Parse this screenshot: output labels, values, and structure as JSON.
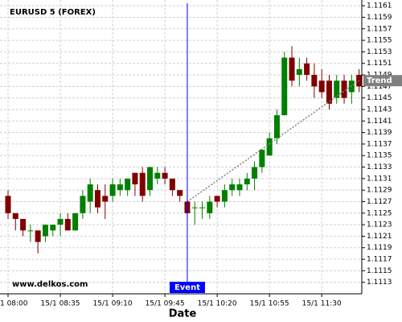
{
  "chart_data": {
    "type": "candlestick",
    "title": "EURUSD 5 (FOREX)",
    "watermark": "www.delkos.com",
    "x_label": "Date",
    "categories": [
      "15/1 08:00",
      null,
      null,
      null,
      null,
      null,
      null,
      "15/1 08:35",
      null,
      null,
      null,
      null,
      null,
      null,
      "15/1 09:10",
      null,
      null,
      null,
      null,
      null,
      null,
      "15/1 09:45",
      null,
      null,
      null,
      null,
      null,
      null,
      "15/1 10:20",
      null,
      null,
      null,
      null,
      null,
      null,
      "15/1 10:55",
      null,
      null,
      null,
      null,
      null,
      null,
      "15/1 11:30",
      null,
      null,
      null,
      null,
      null
    ],
    "open": [
      1.1128,
      1.1125,
      1.1124,
      1.1122,
      1.1122,
      1.1121,
      1.1122,
      1.1123,
      1.1124,
      1.1122,
      1.1125,
      1.1127,
      1.1129,
      1.1128,
      1.1128,
      1.1129,
      1.1129,
      1.1132,
      1.1132,
      1.1129,
      1.1131,
      1.1132,
      1.1131,
      1.1129,
      1.1127,
      1.1126,
      1.1126,
      1.1125,
      1.1128,
      1.1127,
      1.1129,
      1.1129,
      1.113,
      1.1131,
      1.1133,
      1.1135,
      1.1138,
      1.1142,
      1.1152,
      1.1149,
      1.1151,
      1.1149,
      1.1148,
      1.1148,
      1.1145,
      1.1148,
      1.1146,
      1.1149
    ],
    "high": [
      1.1129,
      1.1125,
      1.1124,
      1.1123,
      1.1122,
      1.1123,
      1.1123,
      1.1125,
      1.1125,
      1.1125,
      1.1129,
      1.1131,
      1.113,
      1.113,
      1.1131,
      1.1131,
      1.1131,
      1.1132,
      1.1133,
      1.1133,
      1.1133,
      1.1133,
      1.1131,
      1.1129,
      1.1128,
      1.1127,
      1.1127,
      1.1128,
      1.1128,
      1.113,
      1.1131,
      1.1131,
      1.1132,
      1.1134,
      1.1136,
      1.1139,
      1.1143,
      1.1153,
      1.1154,
      1.1152,
      1.1152,
      1.1151,
      1.115,
      1.1149,
      1.1149,
      1.1149,
      1.1149,
      1.115
    ],
    "low": [
      1.1124,
      1.1122,
      1.1121,
      1.112,
      1.1118,
      1.112,
      1.1121,
      1.1121,
      1.1122,
      1.1122,
      1.1124,
      1.1125,
      1.1125,
      1.1124,
      1.1127,
      1.1128,
      1.1128,
      1.1128,
      1.1127,
      1.1128,
      1.113,
      1.113,
      1.1128,
      1.1127,
      1.1124,
      1.1123,
      1.1124,
      1.1124,
      1.1126,
      1.1126,
      1.1128,
      1.1128,
      1.1129,
      1.1129,
      1.1132,
      1.1135,
      1.1137,
      1.1142,
      1.1147,
      1.1147,
      1.1148,
      1.1145,
      1.1145,
      1.1143,
      1.1144,
      1.1144,
      1.1144,
      1.1146
    ],
    "close": [
      1.1125,
      1.1124,
      1.1122,
      1.1122,
      1.112,
      1.1123,
      1.1123,
      1.1124,
      1.1122,
      1.1125,
      1.1128,
      1.113,
      1.1126,
      1.1127,
      1.113,
      1.113,
      1.1131,
      1.113,
      1.1128,
      1.1133,
      1.1132,
      1.1131,
      1.1129,
      1.1128,
      1.1125,
      1.1126,
      1.1126,
      1.1127,
      1.1127,
      1.1129,
      1.113,
      1.113,
      1.1131,
      1.1133,
      1.1136,
      1.1138,
      1.1142,
      1.1152,
      1.1148,
      1.115,
      1.1149,
      1.1147,
      1.1146,
      1.1144,
      1.1148,
      1.1145,
      1.1148,
      1.1147
    ],
    "up_color": "#008000",
    "down_color": "#800000",
    "ylim": [
      1.1111,
      1.1162
    ],
    "yticks": [
      1.1113,
      1.1115,
      1.1117,
      1.1119,
      1.1121,
      1.1123,
      1.1125,
      1.1127,
      1.1129,
      1.1131,
      1.1133,
      1.1135,
      1.1137,
      1.1139,
      1.1141,
      1.1143,
      1.1145,
      1.1147,
      1.1149,
      1.1151,
      1.1153,
      1.1155,
      1.1157,
      1.1159,
      1.1161
    ],
    "grid": true,
    "event": {
      "label": "Event",
      "index": 24,
      "color": "#0000ff"
    },
    "trend": {
      "label": "Trend",
      "x": [
        24,
        47
      ],
      "values": [
        1.1127,
        1.1148
      ],
      "color": "#808080"
    }
  }
}
